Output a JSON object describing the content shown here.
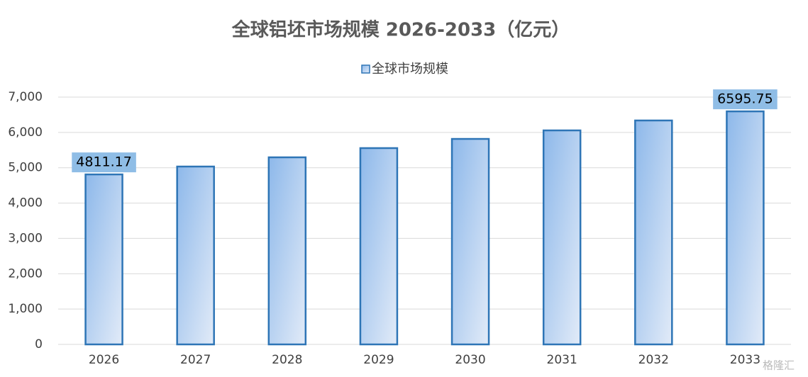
{
  "chart_data": {
    "type": "bar",
    "title": "全球铝坯市场规模 2026-2033（亿元）",
    "categories": [
      "2026",
      "2027",
      "2028",
      "2029",
      "2030",
      "2031",
      "2032",
      "2033"
    ],
    "series": [
      {
        "name": "全球市场规模",
        "color": "#2e75b6",
        "values": [
          4811.17,
          5034,
          5295,
          5556,
          5816,
          6057,
          6338,
          6595.75
        ],
        "value_labels": [
          "4811.17",
          null,
          null,
          null,
          null,
          null,
          null,
          "6595.75"
        ]
      }
    ],
    "ylim": [
      0,
      7000
    ],
    "yticks": [
      0,
      {
        "value": 1000,
        "label": "1,000"
      },
      {
        "value": 2000,
        "label": "2,000"
      },
      {
        "value": 3000,
        "label": "3,000"
      },
      {
        "value": 4000,
        "label": "4,000"
      },
      {
        "value": 5000,
        "label": "5,000"
      },
      {
        "value": 6000,
        "label": "6,000"
      },
      {
        "value": 7000,
        "label": "7,000"
      }
    ],
    "grid": true,
    "legend": "top",
    "watermark": "格隆汇"
  }
}
